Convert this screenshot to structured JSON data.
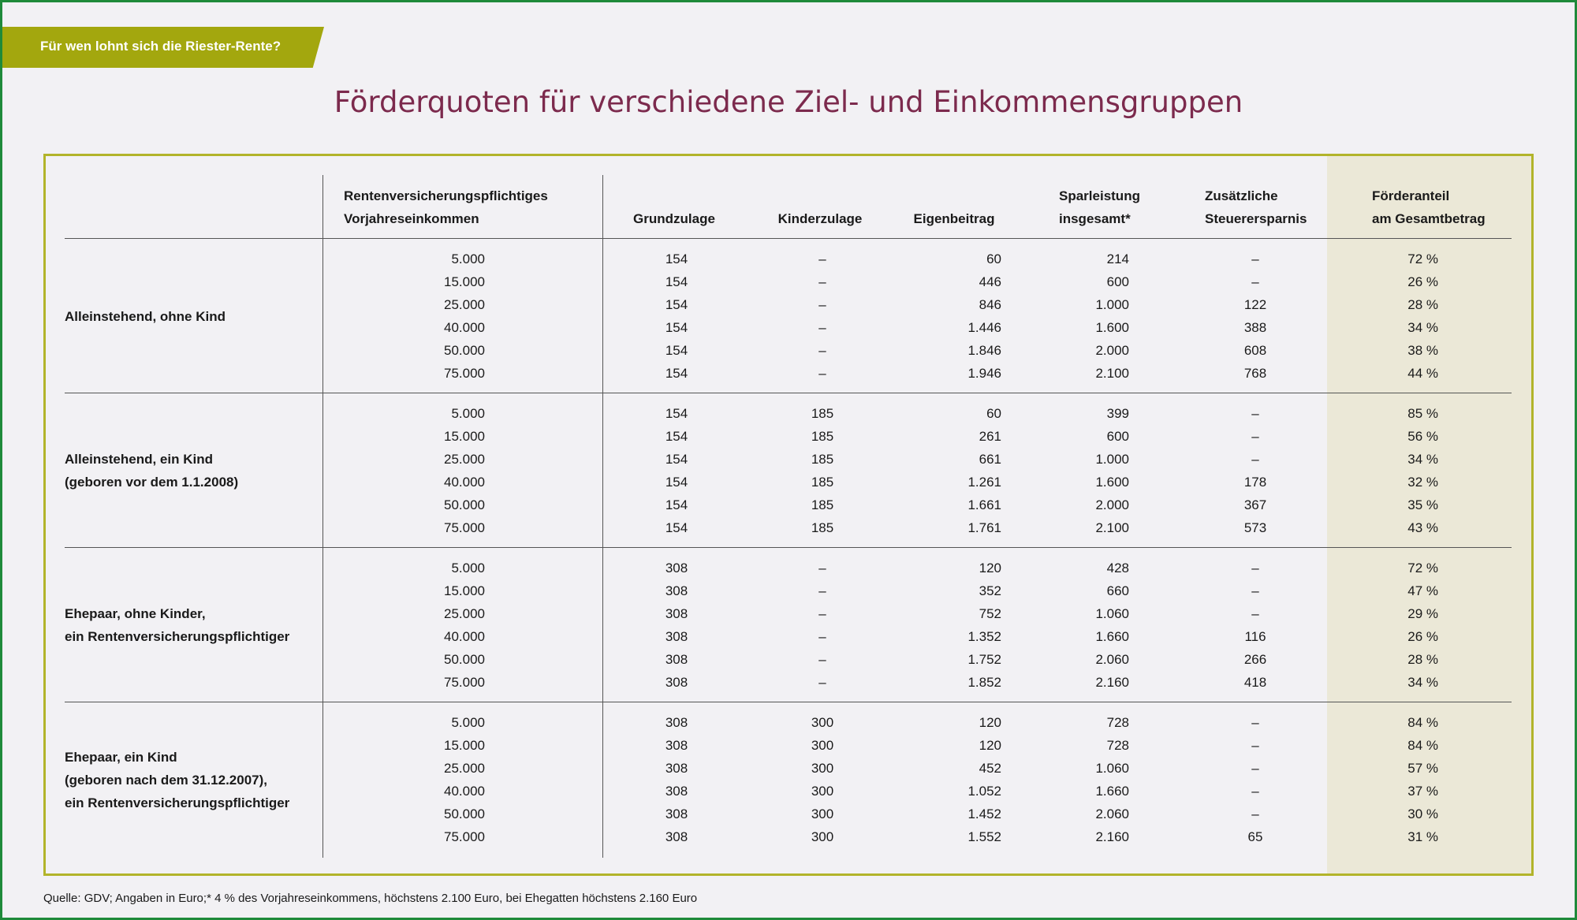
{
  "banner": "Für wen lohnt sich die Riester-Rente?",
  "title": "Förderquoten für verschiedene Ziel- und Einkommensgruppen",
  "colors": {
    "accent_olive": "#a3a70e",
    "title_color": "#7c2a4d",
    "box_border": "#b2b42a",
    "highlight_column": "#ebe8d7"
  },
  "table": {
    "headers": [
      "Rentenversicherungspflichtiges\nVorjahreseinkommen",
      "Grundzulage",
      "Kinderzulage",
      "Eigenbeitrag",
      "Sparleistung\ninsgesamt*",
      "Zusätzliche\nSteuerersparnis",
      "Förderanteil\nam Gesamtbetrag"
    ],
    "groups": [
      {
        "label": "Alleinstehend, ohne Kind",
        "rows": [
          [
            "5.000",
            "154",
            "–",
            "60",
            "214",
            "–",
            "72 %"
          ],
          [
            "15.000",
            "154",
            "–",
            "446",
            "600",
            "–",
            "26 %"
          ],
          [
            "25.000",
            "154",
            "–",
            "846",
            "1.000",
            "122",
            "28 %"
          ],
          [
            "40.000",
            "154",
            "–",
            "1.446",
            "1.600",
            "388",
            "34 %"
          ],
          [
            "50.000",
            "154",
            "–",
            "1.846",
            "2.000",
            "608",
            "38 %"
          ],
          [
            "75.000",
            "154",
            "–",
            "1.946",
            "2.100",
            "768",
            "44 %"
          ]
        ]
      },
      {
        "label": "Alleinstehend, ein Kind\n(geboren vor dem 1.1.2008)",
        "rows": [
          [
            "5.000",
            "154",
            "185",
            "60",
            "399",
            "–",
            "85 %"
          ],
          [
            "15.000",
            "154",
            "185",
            "261",
            "600",
            "–",
            "56 %"
          ],
          [
            "25.000",
            "154",
            "185",
            "661",
            "1.000",
            "–",
            "34 %"
          ],
          [
            "40.000",
            "154",
            "185",
            "1.261",
            "1.600",
            "178",
            "32 %"
          ],
          [
            "50.000",
            "154",
            "185",
            "1.661",
            "2.000",
            "367",
            "35 %"
          ],
          [
            "75.000",
            "154",
            "185",
            "1.761",
            "2.100",
            "573",
            "43 %"
          ]
        ]
      },
      {
        "label": "Ehepaar, ohne Kinder,\nein Rentenversicherungspflichtiger",
        "rows": [
          [
            "5.000",
            "308",
            "–",
            "120",
            "428",
            "–",
            "72 %"
          ],
          [
            "15.000",
            "308",
            "–",
            "352",
            "660",
            "–",
            "47 %"
          ],
          [
            "25.000",
            "308",
            "–",
            "752",
            "1.060",
            "–",
            "29 %"
          ],
          [
            "40.000",
            "308",
            "–",
            "1.352",
            "1.660",
            "116",
            "26 %"
          ],
          [
            "50.000",
            "308",
            "–",
            "1.752",
            "2.060",
            "266",
            "28 %"
          ],
          [
            "75.000",
            "308",
            "–",
            "1.852",
            "2.160",
            "418",
            "34 %"
          ]
        ]
      },
      {
        "label": "Ehepaar, ein Kind\n(geboren nach dem 31.12.2007),\nein Rentenversicherungspflichtiger",
        "rows": [
          [
            "5.000",
            "308",
            "300",
            "120",
            "728",
            "–",
            "84 %"
          ],
          [
            "15.000",
            "308",
            "300",
            "120",
            "728",
            "–",
            "84 %"
          ],
          [
            "25.000",
            "308",
            "300",
            "452",
            "1.060",
            "–",
            "57 %"
          ],
          [
            "40.000",
            "308",
            "300",
            "1.052",
            "1.660",
            "–",
            "37 %"
          ],
          [
            "50.000",
            "308",
            "300",
            "1.452",
            "2.060",
            "–",
            "30 %"
          ],
          [
            "75.000",
            "308",
            "300",
            "1.552",
            "2.160",
            "65",
            "31 %"
          ]
        ]
      }
    ]
  },
  "footer": "Quelle: GDV; Angaben in Euro;* 4 % des Vorjahreseinkommens, höchstens 2.100 Euro, bei Ehegatten höchstens 2.160 Euro"
}
